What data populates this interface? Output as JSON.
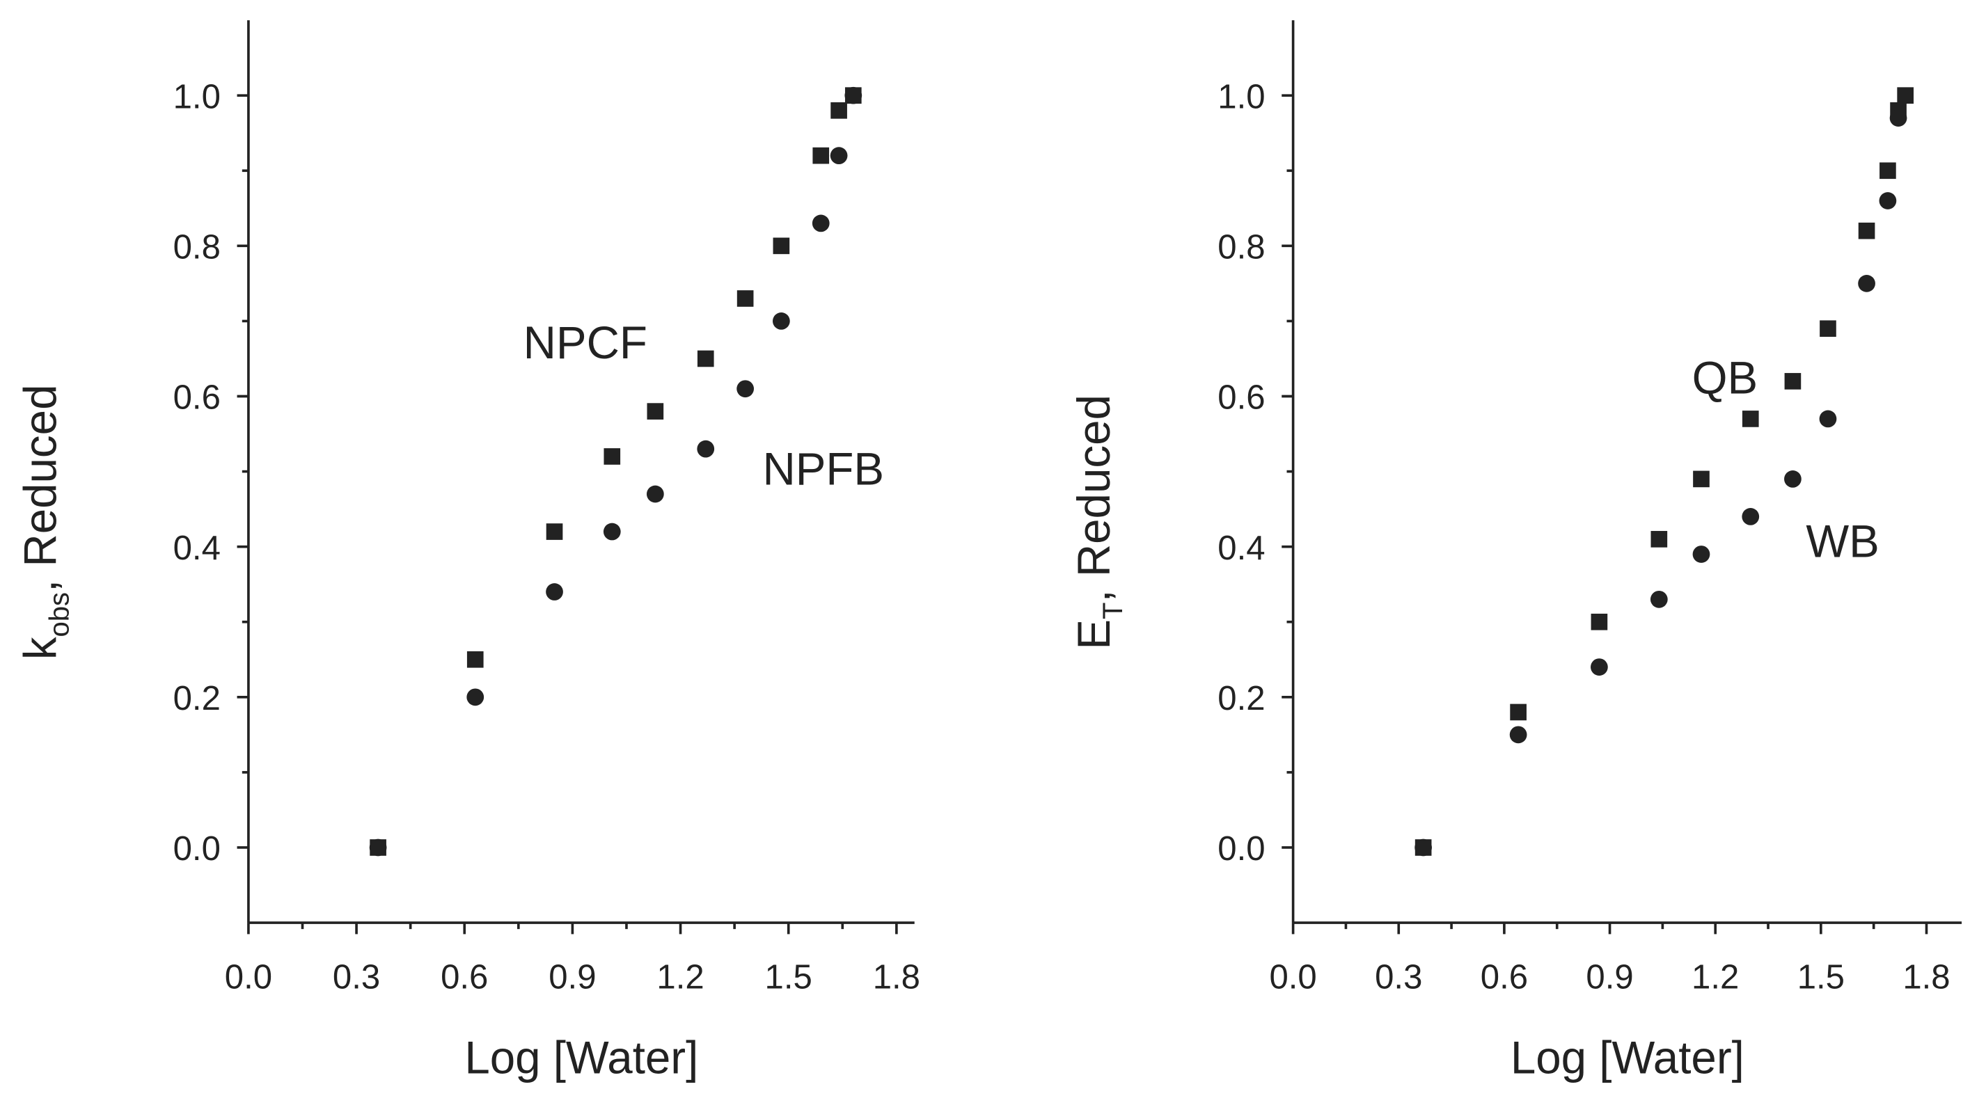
{
  "chart_data": [
    {
      "type": "scatter",
      "x_label": "Log [Water]",
      "y_label": {
        "main": "k",
        "sub": "obs",
        "rest": ", Reduced"
      },
      "xlim": [
        0,
        1.85
      ],
      "xticks": [
        {
          "value": 0,
          "label": "0.0"
        },
        0.3,
        0.6,
        0.9,
        1.2,
        1.5,
        1.8
      ],
      "ylim": [
        -0.1,
        1.1
      ],
      "yticks": [
        {
          "value": 0,
          "label": "0.0"
        },
        0.2,
        0.4,
        0.6,
        0.8,
        {
          "value": 1,
          "label": "1.0"
        }
      ],
      "series": [
        {
          "name": "NPCF",
          "marker": "square",
          "color": "#222222",
          "x": [
            0.36,
            0.63,
            0.85,
            1.01,
            1.13,
            1.27,
            1.38,
            1.48,
            1.59,
            1.64,
            1.68
          ],
          "values": [
            0,
            0.25,
            0.42,
            0.52,
            0.58,
            0.65,
            0.73,
            0.8,
            0.92,
            0.98,
            1
          ]
        },
        {
          "name": "NPFB",
          "marker": "circle",
          "color": "#222222",
          "x": [
            0.36,
            0.63,
            0.85,
            1.01,
            1.13,
            1.27,
            1.38,
            1.48,
            1.59,
            1.64,
            1.68
          ],
          "values": [
            0,
            0.2,
            0.34,
            0.42,
            0.47,
            0.53,
            0.61,
            0.7,
            0.83,
            0.92,
            1
          ]
        }
      ]
    },
    {
      "type": "scatter",
      "x_label": "Log [Water]",
      "y_label": {
        "main": "E",
        "sub": "T",
        "rest": ", Reduced"
      },
      "xlim": [
        0,
        1.9
      ],
      "xticks": [
        {
          "value": 0,
          "label": "0.0"
        },
        0.3,
        0.6,
        0.9,
        1.2,
        1.5,
        1.8
      ],
      "ylim": [
        -0.1,
        1.1
      ],
      "yticks": [
        {
          "value": 0,
          "label": "0.0"
        },
        0.2,
        0.4,
        0.6,
        0.8,
        {
          "value": 1,
          "label": "1.0"
        }
      ],
      "series": [
        {
          "name": "QB",
          "marker": "square",
          "color": "#222222",
          "x": [
            0.37,
            0.64,
            0.87,
            1.04,
            1.16,
            1.3,
            1.42,
            1.52,
            1.63,
            1.69,
            1.72,
            1.74
          ],
          "values": [
            0,
            0.18,
            0.3,
            0.41,
            0.49,
            0.57,
            0.62,
            0.69,
            0.82,
            0.9,
            0.98,
            1
          ]
        },
        {
          "name": "WB",
          "marker": "circle",
          "color": "#222222",
          "x": [
            0.37,
            0.64,
            0.87,
            1.04,
            1.16,
            1.3,
            1.42,
            1.52,
            1.63,
            1.69,
            1.72
          ],
          "values": [
            0,
            0.15,
            0.24,
            0.33,
            0.39,
            0.44,
            0.49,
            0.57,
            0.75,
            0.86,
            0.97
          ]
        }
      ]
    }
  ]
}
